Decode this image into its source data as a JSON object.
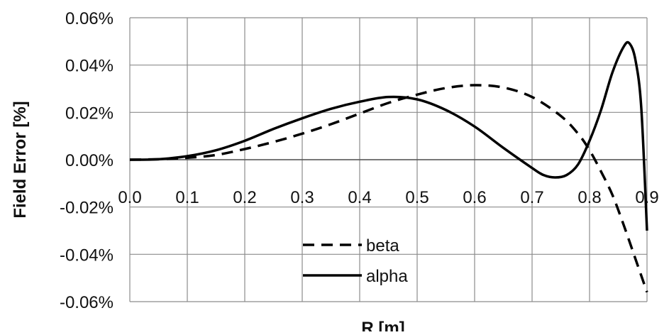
{
  "chart_data": {
    "type": "line",
    "title": "",
    "xlabel": "R [m]",
    "ylabel": "Field Error [%]",
    "xlim": [
      0,
      0.9
    ],
    "ylim": [
      -0.06,
      0.06
    ],
    "x_ticks": [
      "0.0",
      "0.1",
      "0.2",
      "0.3",
      "0.4",
      "0.5",
      "0.6",
      "0.7",
      "0.8",
      "0.9"
    ],
    "y_ticks": [
      "0.06%",
      "0.04%",
      "0.02%",
      "0.00%",
      "-0.02%",
      "-0.04%",
      "-0.06%"
    ],
    "grid": true,
    "legend": "center-bottom",
    "series": [
      {
        "name": "beta",
        "style": "dashed",
        "color": "#000000",
        "x": [
          0.0,
          0.05,
          0.1,
          0.15,
          0.2,
          0.25,
          0.3,
          0.35,
          0.4,
          0.45,
          0.5,
          0.55,
          0.6,
          0.65,
          0.7,
          0.75,
          0.78,
          0.8,
          0.82,
          0.84,
          0.86,
          0.88,
          0.9
        ],
        "y": [
          0.0,
          0.0002,
          0.0008,
          0.002,
          0.0045,
          0.0075,
          0.011,
          0.015,
          0.0195,
          0.024,
          0.0275,
          0.0303,
          0.0315,
          0.0305,
          0.0265,
          0.0185,
          0.011,
          0.004,
          -0.005,
          -0.015,
          -0.028,
          -0.042,
          -0.056
        ]
      },
      {
        "name": "alpha",
        "style": "solid",
        "color": "#000000",
        "x": [
          0.0,
          0.05,
          0.1,
          0.15,
          0.2,
          0.25,
          0.3,
          0.35,
          0.4,
          0.45,
          0.5,
          0.55,
          0.6,
          0.65,
          0.7,
          0.72,
          0.74,
          0.76,
          0.78,
          0.8,
          0.82,
          0.84,
          0.86,
          0.87,
          0.88,
          0.89,
          0.9
        ],
        "y": [
          0.0,
          0.0002,
          0.0015,
          0.004,
          0.008,
          0.013,
          0.0175,
          0.0215,
          0.0245,
          0.0265,
          0.0255,
          0.021,
          0.014,
          0.005,
          -0.0035,
          -0.0065,
          -0.0075,
          -0.0065,
          -0.002,
          0.008,
          0.021,
          0.037,
          0.048,
          0.049,
          0.042,
          0.022,
          -0.03
        ]
      }
    ]
  }
}
